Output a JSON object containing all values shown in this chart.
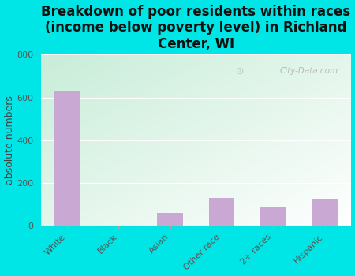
{
  "title": "Breakdown of poor residents within races\n(income below poverty level) in Richland\nCenter, WI",
  "categories": [
    "White",
    "Black",
    "Asian",
    "Other race",
    "2+ races",
    "Hispanic"
  ],
  "values": [
    630,
    0,
    60,
    130,
    85,
    125
  ],
  "bar_color": "#c9a8d4",
  "ylabel": "absolute numbers",
  "ylim": [
    0,
    800
  ],
  "yticks": [
    0,
    200,
    400,
    600,
    800
  ],
  "background_color": "#00e5e5",
  "plot_bg_topleft": "#c8edd8",
  "plot_bg_bottomright": "#ffffff",
  "title_fontsize": 12,
  "tick_fontsize": 8,
  "ylabel_fontsize": 9,
  "watermark": "City-Data.com"
}
